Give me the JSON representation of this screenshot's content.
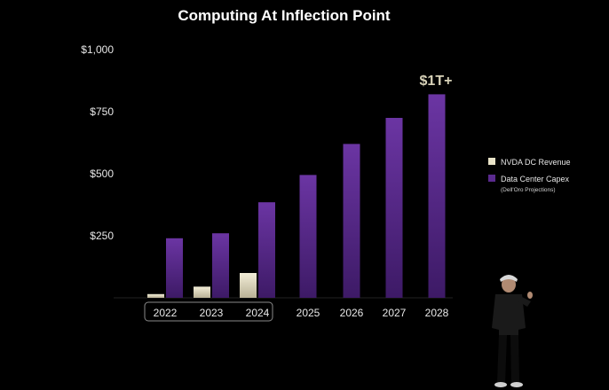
{
  "chart_data": {
    "type": "bar",
    "title": "Computing At Inflection Point",
    "categories": [
      "2022",
      "2023",
      "2024",
      "2025",
      "2026",
      "2027",
      "2028"
    ],
    "ylim": [
      0,
      1000
    ],
    "yticks": [
      250,
      500,
      750,
      1000
    ],
    "ytick_labels": [
      "$250",
      "$500",
      "$750",
      "$1,000"
    ],
    "series": [
      {
        "name": "NVDA DC Revenue",
        "color": "#e9e3c8",
        "values": [
          15,
          45,
          100,
          null,
          null,
          null,
          null
        ]
      },
      {
        "name": "Data Center Capex",
        "note": "(Dell'Oro Projections)",
        "color": "#5a2a8e",
        "values": [
          240,
          260,
          385,
          495,
          620,
          725,
          820
        ]
      }
    ],
    "annotation": "$1T+",
    "highlighted_categories": [
      "2022",
      "2023",
      "2024"
    ],
    "legend_position": "right",
    "grid": false
  },
  "scene": {
    "background": "#000000",
    "speaker": "presenter-on-stage"
  }
}
